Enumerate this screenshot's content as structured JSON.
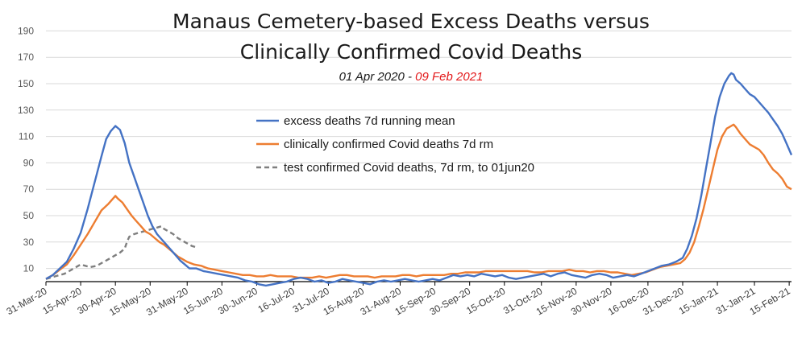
{
  "chart_data": {
    "type": "line",
    "title_lines": [
      "Manaus Cemetery-based Excess Deaths versus",
      "Clinically Confirmed Covid Deaths"
    ],
    "subtitle": {
      "start": "01 Apr 2020 - ",
      "end": "09 Feb 2021",
      "end_color": "#e31a1c"
    },
    "ylim": [
      -10,
      200
    ],
    "xlim": [
      0,
      322
    ],
    "y_ticks": [
      10,
      30,
      50,
      70,
      90,
      110,
      130,
      150,
      170,
      190
    ],
    "x_ticks": [
      {
        "label": "31-Mar-20",
        "day": 0
      },
      {
        "label": "15-Apr-20",
        "day": 15
      },
      {
        "label": "30-Apr-20",
        "day": 30
      },
      {
        "label": "15-May-20",
        "day": 45
      },
      {
        "label": "31-May-20",
        "day": 61
      },
      {
        "label": "15-Jun-20",
        "day": 76
      },
      {
        "label": "30-Jun-20",
        "day": 91
      },
      {
        "label": "16-Jul-20",
        "day": 107
      },
      {
        "label": "31-Jul-20",
        "day": 122
      },
      {
        "label": "15-Aug-20",
        "day": 137
      },
      {
        "label": "31-Aug-20",
        "day": 153
      },
      {
        "label": "15-Sep-20",
        "day": 168
      },
      {
        "label": "30-Sep-20",
        "day": 183
      },
      {
        "label": "15-Oct-20",
        "day": 198
      },
      {
        "label": "31-Oct-20",
        "day": 214
      },
      {
        "label": "15-Nov-20",
        "day": 229
      },
      {
        "label": "30-Nov-20",
        "day": 244
      },
      {
        "label": "16-Dec-20",
        "day": 260
      },
      {
        "label": "31-Dec-20",
        "day": 275
      },
      {
        "label": "15-Jan-21",
        "day": 290
      },
      {
        "label": "31-Jan-21",
        "day": 306
      },
      {
        "label": "15-Feb-21",
        "day": 321
      }
    ],
    "legend": {
      "placement": "top-center"
    },
    "series": [
      {
        "name": "excess deaths 7d running mean",
        "color": "#4472c4",
        "dash": "solid",
        "points": [
          [
            0,
            2
          ],
          [
            3,
            5
          ],
          [
            6,
            10
          ],
          [
            9,
            15
          ],
          [
            12,
            25
          ],
          [
            15,
            37
          ],
          [
            18,
            55
          ],
          [
            21,
            75
          ],
          [
            24,
            95
          ],
          [
            26,
            108
          ],
          [
            28,
            114
          ],
          [
            30,
            118
          ],
          [
            32,
            115
          ],
          [
            34,
            105
          ],
          [
            36,
            90
          ],
          [
            38,
            80
          ],
          [
            40,
            70
          ],
          [
            42,
            60
          ],
          [
            44,
            50
          ],
          [
            46,
            42
          ],
          [
            48,
            36
          ],
          [
            50,
            32
          ],
          [
            52,
            28
          ],
          [
            54,
            24
          ],
          [
            56,
            20
          ],
          [
            58,
            16
          ],
          [
            60,
            13
          ],
          [
            62,
            10
          ],
          [
            65,
            10
          ],
          [
            68,
            8
          ],
          [
            71,
            7
          ],
          [
            74,
            6
          ],
          [
            77,
            5
          ],
          [
            80,
            4
          ],
          [
            83,
            3
          ],
          [
            86,
            1
          ],
          [
            89,
            0
          ],
          [
            92,
            -2
          ],
          [
            95,
            -3
          ],
          [
            98,
            -2
          ],
          [
            101,
            -1
          ],
          [
            104,
            0
          ],
          [
            107,
            2
          ],
          [
            110,
            3
          ],
          [
            113,
            2
          ],
          [
            116,
            0
          ],
          [
            119,
            1
          ],
          [
            122,
            -1
          ],
          [
            125,
            0
          ],
          [
            128,
            2
          ],
          [
            131,
            1
          ],
          [
            134,
            0
          ],
          [
            137,
            -1
          ],
          [
            140,
            -2
          ],
          [
            143,
            0
          ],
          [
            146,
            1
          ],
          [
            149,
            0
          ],
          [
            152,
            1
          ],
          [
            155,
            2
          ],
          [
            158,
            1
          ],
          [
            161,
            0
          ],
          [
            164,
            1
          ],
          [
            167,
            2
          ],
          [
            170,
            1
          ],
          [
            173,
            3
          ],
          [
            176,
            5
          ],
          [
            179,
            4
          ],
          [
            182,
            5
          ],
          [
            185,
            4
          ],
          [
            188,
            6
          ],
          [
            191,
            5
          ],
          [
            194,
            4
          ],
          [
            197,
            5
          ],
          [
            200,
            3
          ],
          [
            203,
            2
          ],
          [
            206,
            3
          ],
          [
            209,
            4
          ],
          [
            212,
            5
          ],
          [
            215,
            6
          ],
          [
            218,
            4
          ],
          [
            221,
            6
          ],
          [
            224,
            7
          ],
          [
            227,
            5
          ],
          [
            230,
            4
          ],
          [
            233,
            3
          ],
          [
            236,
            5
          ],
          [
            239,
            6
          ],
          [
            242,
            5
          ],
          [
            245,
            3
          ],
          [
            248,
            4
          ],
          [
            251,
            5
          ],
          [
            254,
            4
          ],
          [
            257,
            6
          ],
          [
            260,
            8
          ],
          [
            263,
            10
          ],
          [
            266,
            12
          ],
          [
            269,
            13
          ],
          [
            272,
            15
          ],
          [
            275,
            18
          ],
          [
            277,
            25
          ],
          [
            279,
            35
          ],
          [
            281,
            48
          ],
          [
            283,
            65
          ],
          [
            285,
            85
          ],
          [
            287,
            105
          ],
          [
            289,
            125
          ],
          [
            291,
            140
          ],
          [
            293,
            150
          ],
          [
            295,
            156
          ],
          [
            296,
            158
          ],
          [
            297,
            157
          ],
          [
            298,
            153
          ],
          [
            300,
            150
          ],
          [
            302,
            146
          ],
          [
            304,
            142
          ],
          [
            306,
            140
          ],
          [
            308,
            136
          ],
          [
            310,
            132
          ],
          [
            312,
            128
          ],
          [
            314,
            123
          ],
          [
            316,
            118
          ],
          [
            318,
            112
          ],
          [
            320,
            104
          ],
          [
            322,
            96
          ]
        ]
      },
      {
        "name": "clinically confirmed Covid deaths 7d rm",
        "color": "#ed7d31",
        "dash": "solid",
        "points": [
          [
            0,
            2
          ],
          [
            3,
            5
          ],
          [
            6,
            9
          ],
          [
            9,
            13
          ],
          [
            12,
            20
          ],
          [
            15,
            28
          ],
          [
            18,
            36
          ],
          [
            21,
            45
          ],
          [
            24,
            54
          ],
          [
            27,
            59
          ],
          [
            29,
            63
          ],
          [
            30,
            65
          ],
          [
            31,
            63
          ],
          [
            33,
            60
          ],
          [
            35,
            55
          ],
          [
            37,
            50
          ],
          [
            39,
            46
          ],
          [
            41,
            42
          ],
          [
            43,
            38
          ],
          [
            45,
            36
          ],
          [
            47,
            33
          ],
          [
            49,
            30
          ],
          [
            51,
            28
          ],
          [
            53,
            25
          ],
          [
            55,
            22
          ],
          [
            57,
            19
          ],
          [
            59,
            17
          ],
          [
            61,
            15
          ],
          [
            64,
            13
          ],
          [
            67,
            12
          ],
          [
            70,
            10
          ],
          [
            73,
            9
          ],
          [
            76,
            8
          ],
          [
            79,
            7
          ],
          [
            82,
            6
          ],
          [
            85,
            5
          ],
          [
            88,
            5
          ],
          [
            91,
            4
          ],
          [
            94,
            4
          ],
          [
            97,
            5
          ],
          [
            100,
            4
          ],
          [
            103,
            4
          ],
          [
            106,
            4
          ],
          [
            109,
            3
          ],
          [
            112,
            3
          ],
          [
            115,
            3
          ],
          [
            118,
            4
          ],
          [
            121,
            3
          ],
          [
            124,
            4
          ],
          [
            127,
            5
          ],
          [
            130,
            5
          ],
          [
            133,
            4
          ],
          [
            136,
            4
          ],
          [
            139,
            4
          ],
          [
            142,
            3
          ],
          [
            145,
            4
          ],
          [
            148,
            4
          ],
          [
            151,
            4
          ],
          [
            154,
            5
          ],
          [
            157,
            5
          ],
          [
            160,
            4
          ],
          [
            163,
            5
          ],
          [
            166,
            5
          ],
          [
            169,
            5
          ],
          [
            172,
            5
          ],
          [
            175,
            6
          ],
          [
            178,
            6
          ],
          [
            181,
            7
          ],
          [
            184,
            7
          ],
          [
            187,
            7
          ],
          [
            190,
            8
          ],
          [
            193,
            8
          ],
          [
            196,
            8
          ],
          [
            199,
            8
          ],
          [
            202,
            8
          ],
          [
            205,
            8
          ],
          [
            208,
            8
          ],
          [
            211,
            7
          ],
          [
            214,
            7
          ],
          [
            217,
            8
          ],
          [
            220,
            8
          ],
          [
            223,
            8
          ],
          [
            226,
            9
          ],
          [
            229,
            8
          ],
          [
            232,
            8
          ],
          [
            235,
            7
          ],
          [
            238,
            8
          ],
          [
            241,
            8
          ],
          [
            244,
            7
          ],
          [
            247,
            7
          ],
          [
            250,
            6
          ],
          [
            253,
            5
          ],
          [
            256,
            6
          ],
          [
            259,
            7
          ],
          [
            262,
            9
          ],
          [
            265,
            11
          ],
          [
            268,
            12
          ],
          [
            271,
            13
          ],
          [
            274,
            14
          ],
          [
            276,
            17
          ],
          [
            278,
            22
          ],
          [
            280,
            30
          ],
          [
            282,
            42
          ],
          [
            284,
            55
          ],
          [
            286,
            70
          ],
          [
            288,
            85
          ],
          [
            290,
            100
          ],
          [
            292,
            110
          ],
          [
            294,
            116
          ],
          [
            296,
            118
          ],
          [
            297,
            119
          ],
          [
            298,
            117
          ],
          [
            300,
            112
          ],
          [
            302,
            108
          ],
          [
            304,
            104
          ],
          [
            306,
            102
          ],
          [
            308,
            100
          ],
          [
            310,
            96
          ],
          [
            312,
            90
          ],
          [
            314,
            85
          ],
          [
            316,
            82
          ],
          [
            318,
            78
          ],
          [
            320,
            72
          ],
          [
            322,
            70
          ]
        ]
      },
      {
        "name": "test confirmed Covid deaths, 7d rm, to 01jun20",
        "color": "#7f7f7f",
        "dash": "dashed",
        "points": [
          [
            0,
            2
          ],
          [
            4,
            4
          ],
          [
            8,
            6
          ],
          [
            12,
            10
          ],
          [
            15,
            13
          ],
          [
            17,
            12
          ],
          [
            19,
            11
          ],
          [
            22,
            12
          ],
          [
            24,
            14
          ],
          [
            26,
            16
          ],
          [
            28,
            18
          ],
          [
            30,
            20
          ],
          [
            32,
            22
          ],
          [
            34,
            25
          ],
          [
            35,
            30
          ],
          [
            36,
            34
          ],
          [
            38,
            36
          ],
          [
            40,
            37
          ],
          [
            42,
            38
          ],
          [
            44,
            39
          ],
          [
            46,
            40
          ],
          [
            48,
            41
          ],
          [
            50,
            42
          ],
          [
            51,
            40
          ],
          [
            53,
            38
          ],
          [
            55,
            36
          ],
          [
            57,
            33
          ],
          [
            59,
            31
          ],
          [
            61,
            29
          ],
          [
            63,
            27
          ],
          [
            65,
            26
          ]
        ]
      }
    ]
  }
}
